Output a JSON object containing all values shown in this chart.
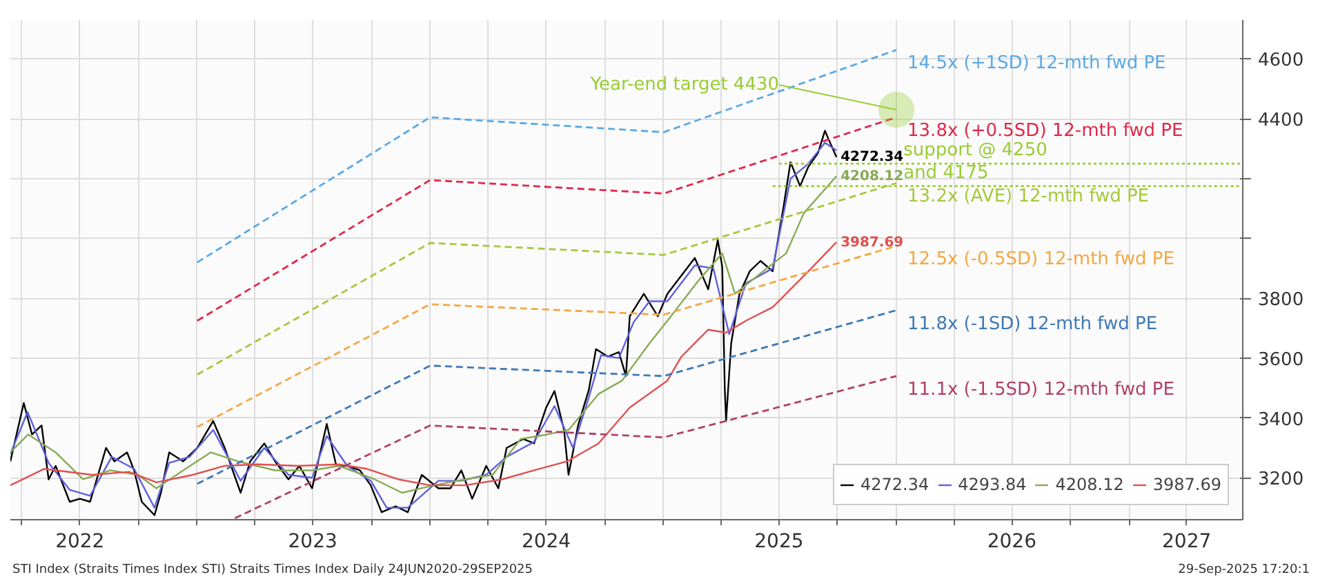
{
  "chart_data": {
    "type": "line",
    "line_style": "solid",
    "grid": true,
    "legend": "bottom right",
    "xlim": [
      "2022-03-14",
      "2027-06-28"
    ],
    "ylim": [
      3060,
      4730
    ],
    "xticks": [
      {
        "value": "2022-04-01",
        "label": null
      },
      {
        "value": "2022-07-01",
        "label": "2022"
      },
      {
        "value": "2022-10-01",
        "label": null
      },
      {
        "value": "2023-01-01",
        "label": null
      },
      {
        "value": "2023-04-01",
        "label": null
      },
      {
        "value": "2023-07-01",
        "label": "2023"
      },
      {
        "value": "2023-10-01",
        "label": null
      },
      {
        "value": "2024-01-01",
        "label": null
      },
      {
        "value": "2024-04-01",
        "label": null
      },
      {
        "value": "2024-07-01",
        "label": "2024"
      },
      {
        "value": "2024-10-01",
        "label": null
      },
      {
        "value": "2025-01-01",
        "label": null
      },
      {
        "value": "2025-04-01",
        "label": null
      },
      {
        "value": "2025-07-01",
        "label": "2025"
      },
      {
        "value": "2025-10-01",
        "label": null
      },
      {
        "value": "2026-01-01",
        "label": null
      },
      {
        "value": "2026-04-01",
        "label": null
      },
      {
        "value": "2026-07-01",
        "label": "2026"
      },
      {
        "value": "2026-10-01",
        "label": null
      },
      {
        "value": "2027-01-01",
        "label": null
      },
      {
        "value": "2027-04-01",
        "label": "2027"
      }
    ],
    "yticks": [
      3200,
      3400,
      3600,
      3800,
      {
        "value": 4000,
        "label": null
      },
      {
        "value": 4200,
        "label": null
      },
      4400,
      4600
    ],
    "series": [
      {
        "name": "4272.34",
        "color": "#000000",
        "x": [
          "2022-03-14",
          "2022-04-04",
          "2022-04-17",
          "2022-05-02",
          "2022-05-13",
          "2022-05-24",
          "2022-06-15",
          "2022-07-01",
          "2022-07-17",
          "2022-08-11",
          "2022-08-24",
          "2022-09-13",
          "2022-09-24",
          "2022-10-06",
          "2022-10-26",
          "2022-11-05",
          "2022-11-18",
          "2022-12-10",
          "2023-01-01",
          "2023-01-26",
          "2023-02-13",
          "2023-03-10",
          "2023-03-25",
          "2023-04-16",
          "2023-05-03",
          "2023-05-24",
          "2023-06-10",
          "2023-06-30",
          "2023-07-23",
          "2023-08-07",
          "2023-08-24",
          "2023-09-13",
          "2023-09-30",
          "2023-10-17",
          "2023-11-08",
          "2023-11-27",
          "2023-12-19",
          "2024-01-14",
          "2024-02-02",
          "2024-02-19",
          "2024-03-07",
          "2024-03-29",
          "2024-04-17",
          "2024-04-30",
          "2024-05-26",
          "2024-06-12",
          "2024-07-01",
          "2024-07-14",
          "2024-07-29",
          "2024-08-05",
          "2024-08-20",
          "2024-09-06",
          "2024-09-17",
          "2024-10-06",
          "2024-10-23",
          "2024-11-03",
          "2024-11-09",
          "2024-12-01",
          "2024-12-23",
          "2025-01-07",
          "2025-02-19",
          "2025-03-12",
          "2025-03-27",
          "2025-04-03",
          "2025-04-07",
          "2025-04-09",
          "2025-04-17",
          "2025-04-30",
          "2025-05-16",
          "2025-06-02",
          "2025-06-21",
          "2025-07-08",
          "2025-07-19",
          "2025-08-03",
          "2025-08-16",
          "2025-08-31",
          "2025-09-11",
          "2025-09-17",
          "2025-09-29"
        ],
        "values": [
          3255,
          3450,
          3345,
          3375,
          3195,
          3240,
          3120,
          3130,
          3120,
          3300,
          3255,
          3285,
          3225,
          3120,
          3075,
          3150,
          3285,
          3255,
          3300,
          3390,
          3300,
          3150,
          3255,
          3315,
          3255,
          3195,
          3240,
          3165,
          3380,
          3240,
          3240,
          3225,
          3175,
          3085,
          3105,
          3085,
          3210,
          3165,
          3165,
          3225,
          3130,
          3240,
          3165,
          3300,
          3330,
          3315,
          3435,
          3490,
          3360,
          3210,
          3375,
          3495,
          3630,
          3605,
          3620,
          3540,
          3740,
          3815,
          3740,
          3815,
          3935,
          3830,
          3995,
          3905,
          3495,
          3390,
          3650,
          3815,
          3890,
          3925,
          3890,
          4105,
          4255,
          4175,
          4240,
          4285,
          4360,
          4330,
          4272.34
        ],
        "value_labels": [
          null,
          null,
          null,
          null,
          null,
          null,
          null,
          null,
          null,
          null,
          null,
          null,
          null,
          null,
          null,
          null,
          null,
          null,
          null,
          null,
          null,
          null,
          null,
          null,
          null,
          null,
          null,
          null,
          null,
          null,
          null,
          null,
          null,
          null,
          null,
          null,
          null,
          null,
          null,
          null,
          null,
          null,
          null,
          null,
          null,
          null,
          null,
          null,
          null,
          null,
          null,
          null,
          null,
          null,
          null,
          null,
          null,
          null,
          null,
          null,
          null,
          null,
          null,
          null,
          null,
          null,
          null,
          null,
          null,
          null,
          null,
          null,
          null,
          null,
          null,
          null,
          null,
          null,
          "4272.34"
        ]
      },
      {
        "name": "4293.84",
        "color": "#5f5fe0",
        "x": [
          "2022-03-14",
          "2022-04-10",
          "2022-05-13",
          "2022-06-15",
          "2022-07-17",
          "2022-08-20",
          "2022-09-24",
          "2022-10-26",
          "2022-11-18",
          "2022-12-20",
          "2023-01-26",
          "2023-03-10",
          "2023-04-16",
          "2023-05-24",
          "2023-06-30",
          "2023-07-23",
          "2023-08-24",
          "2023-09-30",
          "2023-10-25",
          "2023-11-27",
          "2024-01-14",
          "2024-02-19",
          "2024-03-29",
          "2024-04-30",
          "2024-06-12",
          "2024-07-14",
          "2024-08-12",
          "2024-09-06",
          "2024-09-25",
          "2024-10-23",
          "2024-11-15",
          "2024-12-10",
          "2025-01-07",
          "2025-02-19",
          "2025-03-20",
          "2025-04-14",
          "2025-05-10",
          "2025-06-21",
          "2025-07-19",
          "2025-08-16",
          "2025-09-11",
          "2025-09-29"
        ],
        "values": [
          3280,
          3420,
          3250,
          3160,
          3140,
          3270,
          3230,
          3100,
          3250,
          3270,
          3360,
          3190,
          3300,
          3210,
          3200,
          3340,
          3240,
          3190,
          3100,
          3100,
          3190,
          3190,
          3210,
          3270,
          3320,
          3440,
          3300,
          3470,
          3610,
          3600,
          3720,
          3790,
          3790,
          3910,
          3900,
          3680,
          3850,
          3900,
          4200,
          4250,
          4320,
          4293.84
        ]
      },
      {
        "name": "4208.12",
        "color": "#8aaa55",
        "x": [
          "2022-03-14",
          "2022-04-11",
          "2022-05-24",
          "2022-07-06",
          "2022-08-18",
          "2022-09-30",
          "2022-10-29",
          "2022-12-10",
          "2023-01-22",
          "2023-03-06",
          "2023-05-03",
          "2023-06-30",
          "2023-08-11",
          "2023-10-06",
          "2023-11-18",
          "2024-01-07",
          "2024-02-25",
          "2024-04-08",
          "2024-05-22",
          "2024-07-03",
          "2024-08-05",
          "2024-09-21",
          "2024-10-28",
          "2024-12-10",
          "2025-01-07",
          "2025-02-25",
          "2025-04-03",
          "2025-04-23",
          "2025-06-06",
          "2025-07-12",
          "2025-08-09",
          "2025-09-29"
        ],
        "values": [
          3285,
          3345,
          3285,
          3195,
          3225,
          3210,
          3165,
          3225,
          3285,
          3255,
          3225,
          3225,
          3240,
          3195,
          3150,
          3175,
          3195,
          3210,
          3330,
          3345,
          3360,
          3480,
          3525,
          3650,
          3725,
          3860,
          3950,
          3815,
          3890,
          3950,
          4085,
          4208.12
        ],
        "value_labels": [
          null,
          null,
          null,
          null,
          null,
          null,
          null,
          null,
          null,
          null,
          null,
          null,
          null,
          null,
          null,
          null,
          null,
          null,
          null,
          null,
          null,
          null,
          null,
          null,
          null,
          null,
          null,
          null,
          null,
          null,
          null,
          "4208.12"
        ]
      },
      {
        "name": "3987.69",
        "color": "#e05050",
        "x": [
          "2022-03-14",
          "2022-05-06",
          "2022-07-20",
          "2022-09-16",
          "2022-10-29",
          "2022-12-25",
          "2023-02-13",
          "2023-04-05",
          "2023-06-08",
          "2023-08-11",
          "2023-09-24",
          "2023-11-12",
          "2024-01-01",
          "2024-02-25",
          "2024-04-23",
          "2024-06-12",
          "2024-08-03",
          "2024-09-21",
          "2024-11-09",
          "2025-01-07",
          "2025-01-29",
          "2025-03-12",
          "2025-04-09",
          "2025-05-10",
          "2025-06-21",
          "2025-07-19",
          "2025-08-16",
          "2025-09-29"
        ],
        "values": [
          3175,
          3230,
          3210,
          3220,
          3185,
          3210,
          3240,
          3245,
          3240,
          3245,
          3230,
          3195,
          3175,
          3175,
          3195,
          3225,
          3255,
          3315,
          3435,
          3525,
          3605,
          3695,
          3685,
          3725,
          3770,
          3830,
          3890,
          3987.69
        ],
        "value_labels": [
          null,
          null,
          null,
          null,
          null,
          null,
          null,
          null,
          null,
          null,
          null,
          null,
          null,
          null,
          null,
          null,
          null,
          null,
          null,
          null,
          null,
          null,
          null,
          null,
          null,
          null,
          null,
          "3987.69"
        ]
      },
      {
        "name": "14.5x (+1SD) 12-mth fwd PE",
        "color": "#5aa9e6",
        "line_style": "dashed",
        "x": [
          "2023-01-01",
          "2024-01-01",
          "2025-01-01",
          "2026-01-01"
        ],
        "values": [
          3920,
          4405,
          4355,
          4630
        ]
      },
      {
        "name": "13.8x (+0.5SD) 12-mth fwd PE",
        "color": "#e0284a",
        "line_style": "dashed",
        "x": [
          "2023-01-01",
          "2024-01-01",
          "2025-01-01",
          "2026-01-01"
        ],
        "values": [
          3725,
          4195,
          4150,
          4405
        ]
      },
      {
        "name": "13.2x (AVE) 12-mth fwd PE",
        "color": "#a6c83c",
        "line_style": "dashed",
        "x": [
          "2023-01-01",
          "2024-01-01",
          "2025-01-01",
          "2026-01-01"
        ],
        "values": [
          3545,
          3985,
          3945,
          4185
        ]
      },
      {
        "name": "12.5x (-0.5SD) 12-mth fwd PE",
        "color": "#f5a742",
        "line_style": "dashed",
        "x": [
          "2023-01-01",
          "2024-01-01",
          "2025-01-01",
          "2026-01-01"
        ],
        "values": [
          3370,
          3780,
          3745,
          3975
        ]
      },
      {
        "name": "11.8x (-1SD) 12-mth fwd PE",
        "color": "#3f79b5",
        "line_style": "dashed",
        "x": [
          "2023-01-01",
          "2024-01-01",
          "2025-01-01",
          "2026-01-01"
        ],
        "values": [
          3180,
          3575,
          3540,
          3760
        ]
      },
      {
        "name": "11.1x (-1.5SD) 12-mth fwd PE",
        "color": "#b0406a",
        "line_style": "dashed",
        "x": [
          "2023-03-01",
          "2024-01-01",
          "2025-01-01",
          "2026-01-01"
        ],
        "values": [
          3065,
          3375,
          3335,
          3540
        ]
      },
      {
        "color": "#99cc33",
        "line_style": "dotted",
        "x": [
          "2025-07-01",
          "2027-06-28"
        ],
        "values": [
          4250,
          4250
        ]
      },
      {
        "color": "#99cc33",
        "line_style": "dotted",
        "x": [
          "2025-06-21",
          "2027-06-28"
        ],
        "values": [
          4175,
          4175
        ]
      }
    ],
    "annotations": [
      {
        "text": "Year-end target 4430",
        "x": "2026-01-01",
        "y": 4430
      },
      {
        "text": "support @ 4250",
        "x": "2026-01-12",
        "y": 4250
      },
      {
        "text": "and 4175",
        "x": "2026-01-12",
        "y": 4175
      },
      "STI Index (Straits Times Index STI) Straits Times Index  Daily 24JUN2020-29SEP2025",
      "29-Sep-2025 17:20:1"
    ]
  }
}
